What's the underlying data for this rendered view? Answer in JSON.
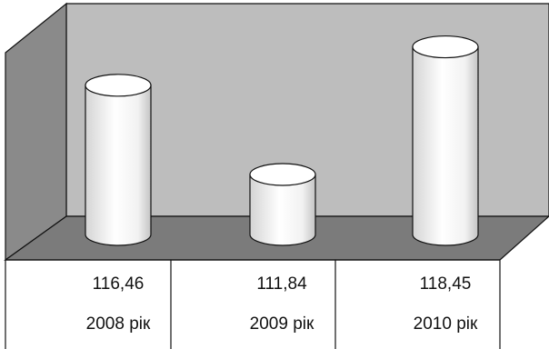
{
  "chart_data": {
    "type": "bar",
    "bar_shape": "cylinder",
    "categories": [
      "2008 рік",
      "2009 рік",
      "2010 рік"
    ],
    "values": [
      116.46,
      111.84,
      118.45
    ],
    "value_labels": [
      "116,46",
      "111,84",
      "118,45"
    ],
    "data_table": true,
    "legend": "none",
    "grid": false
  },
  "colors": {
    "back_wall": "#bdbdbd",
    "side_wall": "#8a8a8a",
    "floor": "#7b7b7b",
    "bar_fill": "#ffffff"
  }
}
